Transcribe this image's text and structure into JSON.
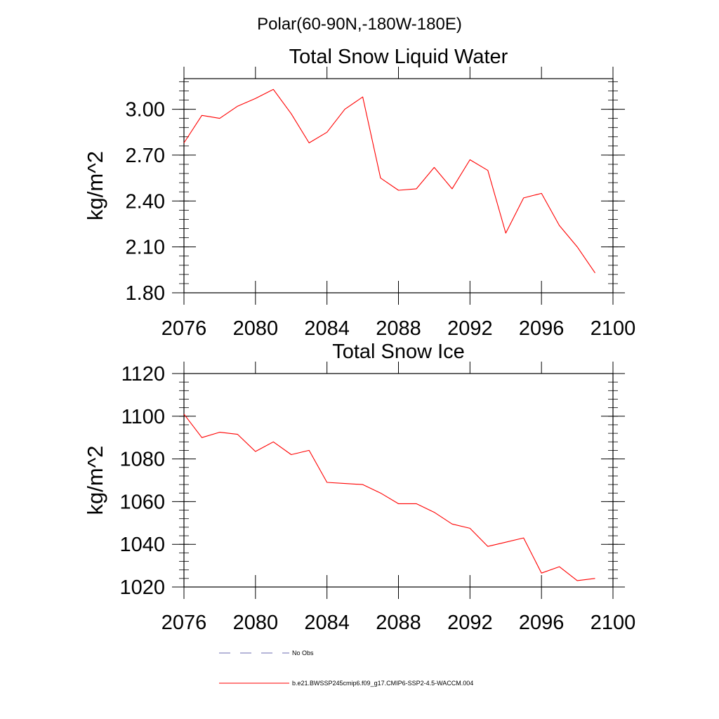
{
  "figure": {
    "main_title": "Polar(60-90N,-180W-180E)"
  },
  "chart_data": [
    {
      "type": "line",
      "title": "Total Snow Liquid Water",
      "xlabel": "",
      "ylabel": "kg/m^2",
      "xlim": [
        2076,
        2100
      ],
      "ylim": [
        1.8,
        3.2
      ],
      "xticks": [
        2076,
        2080,
        2084,
        2088,
        2092,
        2096,
        2100
      ],
      "yticks": [
        1.8,
        2.1,
        2.4,
        2.7,
        3.0
      ],
      "ytick_decimals": 2,
      "grid": false,
      "series": [
        {
          "name": "b.e21.BWSSP245cmip6.f09_g17.CMIP6-SSP2-4.5-WACCM.004",
          "color": "#ff0000",
          "x": [
            2076,
            2077,
            2078,
            2079,
            2080,
            2081,
            2082,
            2083,
            2084,
            2085,
            2086,
            2087,
            2088,
            2089,
            2090,
            2091,
            2092,
            2093,
            2094,
            2095,
            2096,
            2097,
            2098,
            2099
          ],
          "y": [
            2.78,
            2.96,
            2.94,
            3.02,
            3.07,
            3.13,
            2.97,
            2.78,
            2.85,
            3.0,
            3.08,
            2.55,
            2.47,
            2.48,
            2.62,
            2.48,
            2.67,
            2.6,
            2.19,
            2.42,
            2.45,
            2.24,
            2.1,
            1.93
          ]
        }
      ]
    },
    {
      "type": "line",
      "title": "Total Snow Ice",
      "xlabel": "",
      "ylabel": "kg/m^2",
      "xlim": [
        2076,
        2100
      ],
      "ylim": [
        1020,
        1120
      ],
      "xticks": [
        2076,
        2080,
        2084,
        2088,
        2092,
        2096,
        2100
      ],
      "yticks": [
        1020,
        1040,
        1060,
        1080,
        1100,
        1120
      ],
      "ytick_decimals": 0,
      "grid": false,
      "series": [
        {
          "name": "b.e21.BWSSP245cmip6.f09_g17.CMIP6-SSP2-4.5-WACCM.004",
          "color": "#ff0000",
          "x": [
            2076,
            2077,
            2078,
            2079,
            2080,
            2081,
            2082,
            2083,
            2084,
            2085,
            2086,
            2087,
            2088,
            2089,
            2090,
            2091,
            2092,
            2093,
            2094,
            2095,
            2096,
            2097,
            2098,
            2099
          ],
          "y": [
            1101,
            1090,
            1092.5,
            1091.5,
            1083.5,
            1088,
            1082,
            1084,
            1069,
            1068.5,
            1068,
            1064,
            1059,
            1059,
            1055,
            1049.5,
            1047.5,
            1039,
            1041,
            1043,
            1026.5,
            1029.5,
            1023,
            1024
          ]
        }
      ]
    }
  ],
  "legend": {
    "placement": "bottom",
    "items": [
      {
        "label": "No Obs",
        "color": "#6b6bb0",
        "style": "dashed"
      },
      {
        "label": "b.e21.BWSSP245cmip6.f09_g17.CMIP6-SSP2-4.5-WACCM.004",
        "color": "#ff0000",
        "style": "solid"
      }
    ]
  }
}
